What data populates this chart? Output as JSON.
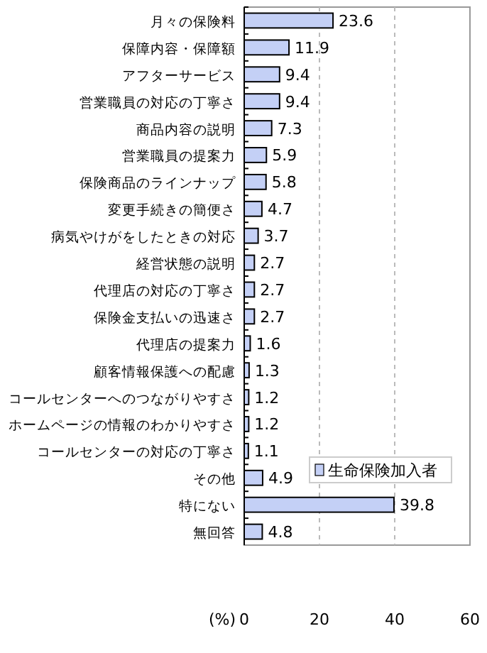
{
  "chart_data": {
    "type": "bar",
    "orientation": "horizontal",
    "xlabel": "(%)",
    "categories": [
      "月々の保険料",
      "保障内容・保障額",
      "アフターサービス",
      "営業職員の対応の丁寧さ",
      "商品内容の説明",
      "営業職員の提案力",
      "保険商品のラインナップ",
      "変更手続きの簡便さ",
      "病気やけがをしたときの対応",
      "経営状態の説明",
      "代理店の対応の丁寧さ",
      "保険金支払いの迅速さ",
      "代理店の提案力",
      "顧客情報保護への配慮",
      "コールセンターへのつながりやすさ",
      "ホームページの情報のわかりやすさ",
      "コールセンターの対応の丁寧さ",
      "その他",
      "特にない",
      "無回答"
    ],
    "series": [
      {
        "name": "生命保険加入者",
        "color": "#c4d0f6",
        "values": [
          23.6,
          11.9,
          9.4,
          9.4,
          7.3,
          5.9,
          5.8,
          4.7,
          3.7,
          2.7,
          2.7,
          2.7,
          1.6,
          1.3,
          1.2,
          1.2,
          1.1,
          4.9,
          39.8,
          4.8
        ]
      }
    ],
    "xlim": [
      0,
      60
    ],
    "xticks": [
      0,
      20,
      40,
      60
    ],
    "grid": "x",
    "legend": "right",
    "data_labels": true
  }
}
